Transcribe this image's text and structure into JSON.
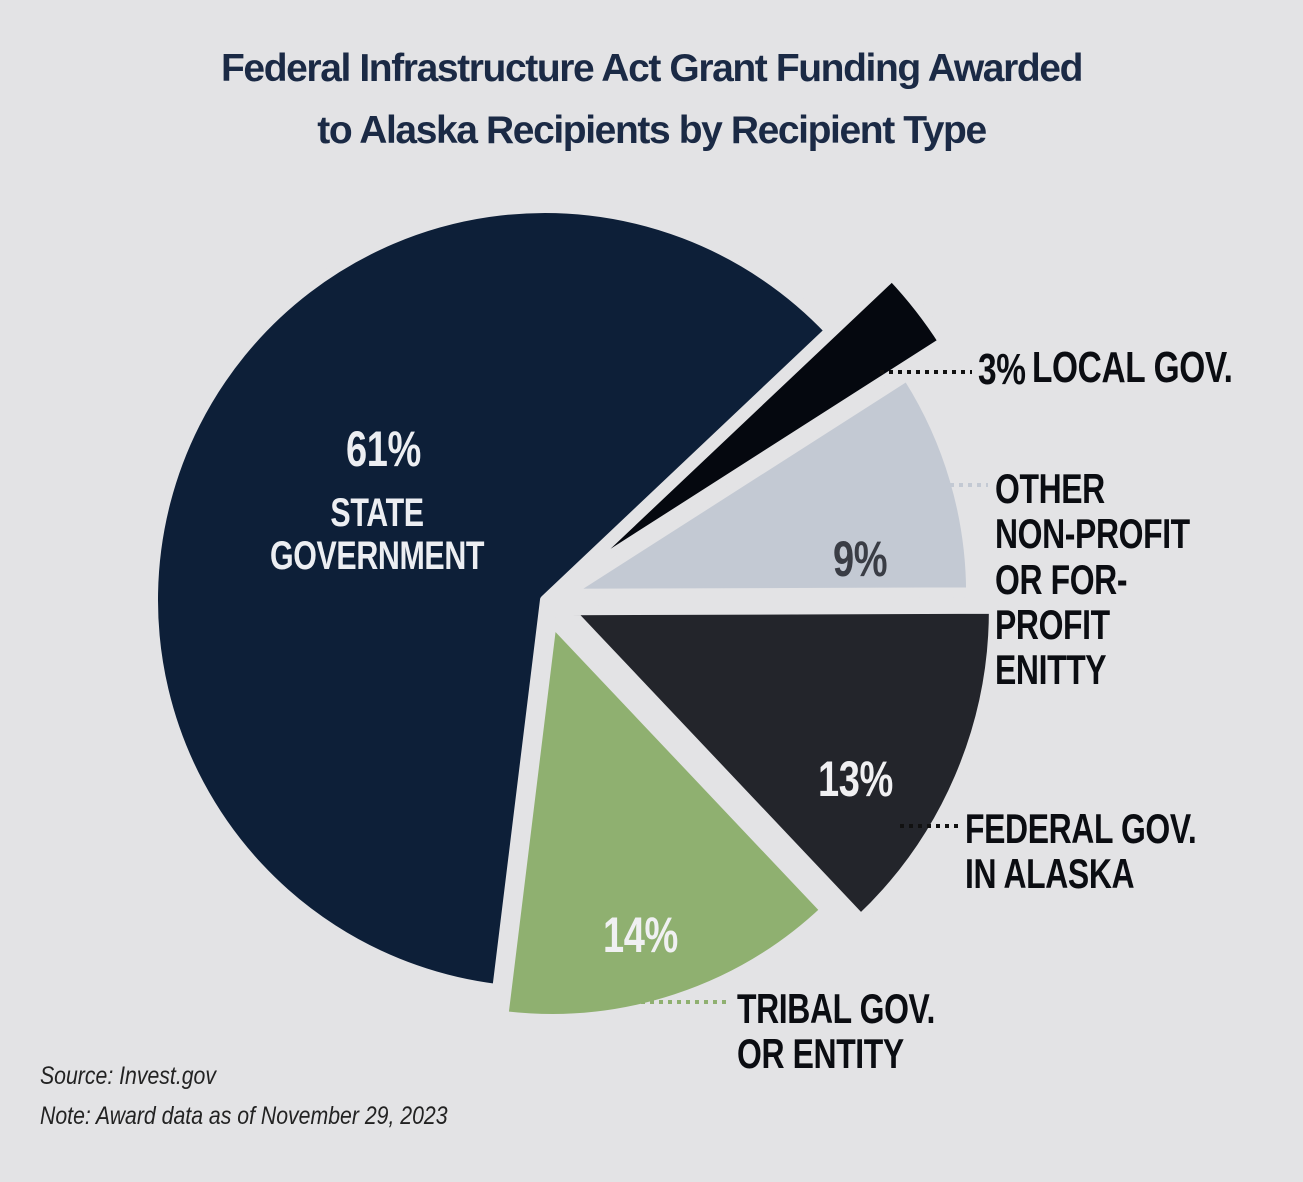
{
  "chart_data": {
    "type": "pie",
    "title": "Federal Infrastructure Act Grant Funding Awarded\nto Alaska Recipients by Recipient Type",
    "categories": [
      "LOCAL GOV.",
      "OTHER\nNON-PROFIT\nOR FOR-PROFIT\nENITTY",
      "FEDERAL GOV.\nIN ALASKA",
      "TRIBAL GOV.\nOR ENTITY",
      "STATE\nGOVERNMENT"
    ],
    "values": [
      3,
      9,
      13,
      14,
      61
    ],
    "value_labels": [
      "3%",
      "9%",
      "13%",
      "14%",
      "61%"
    ],
    "colors": [
      "#05080f",
      "#c3c9d3",
      "#23252b",
      "#8fb070",
      "#0d1f38"
    ],
    "source": "Source: Invest.gov",
    "note": "Note: Award data as of November 29, 2023"
  }
}
